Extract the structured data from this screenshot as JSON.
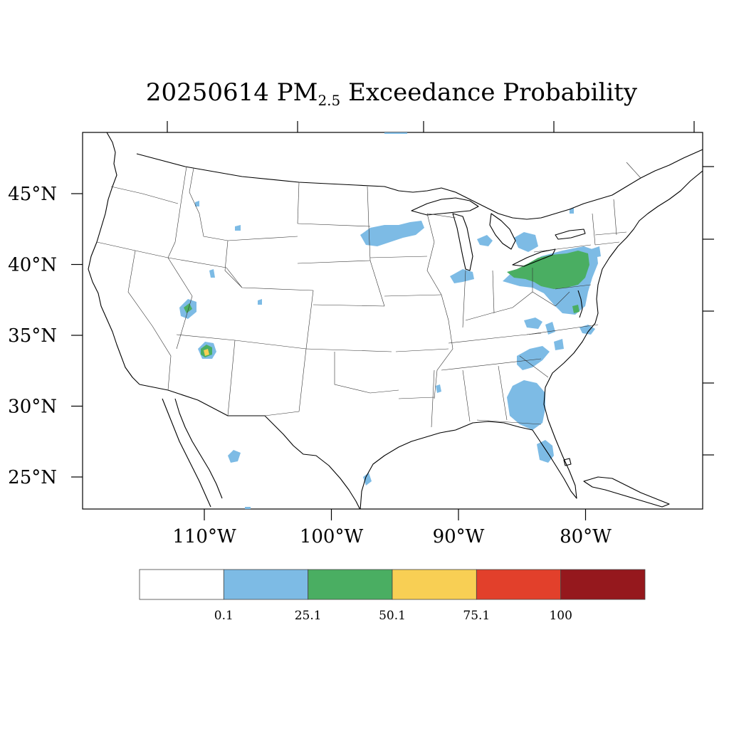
{
  "title": {
    "date": "20250614",
    "pm_main": "PM",
    "pm_sub": "2.5",
    "rest": "Exceedance Probability"
  },
  "map": {
    "lat_labels": [
      {
        "text": "45°N",
        "value": 45
      },
      {
        "text": "40°N",
        "value": 40
      },
      {
        "text": "35°N",
        "value": 35
      },
      {
        "text": "30°N",
        "value": 30
      },
      {
        "text": "25°N",
        "value": 25
      }
    ],
    "lon_labels": [
      {
        "text": "110°W",
        "value": -110
      },
      {
        "text": "100°W",
        "value": -100
      },
      {
        "text": "90°W",
        "value": -90
      },
      {
        "text": "80°W",
        "value": -80
      }
    ],
    "colors": {
      "blue": "#7dbbe5",
      "green": "#4aae62",
      "yellow": "#f8cf54",
      "red": "#e2402b",
      "darkred": "#95181d"
    },
    "regions": [
      {
        "name": "pennsylvania-green-region",
        "level": "green"
      },
      {
        "name": "mid-atlantic-blue-region",
        "level": "blue"
      },
      {
        "name": "georgia-blue-region",
        "level": "blue"
      },
      {
        "name": "carolina-blue-region",
        "level": "blue"
      },
      {
        "name": "florida-blue-region",
        "level": "blue"
      },
      {
        "name": "minnesota-blue-region",
        "level": "blue"
      },
      {
        "name": "ohio-valley-blue-region",
        "level": "blue"
      },
      {
        "name": "utah-region",
        "level": "green"
      },
      {
        "name": "arizona-region",
        "level": "yellow"
      },
      {
        "name": "mexico-blue-region",
        "level": "blue"
      }
    ]
  },
  "colorbar": {
    "bins": [
      {
        "color": "#ffffff"
      },
      {
        "color": "#7dbbe5"
      },
      {
        "color": "#4aae62"
      },
      {
        "color": "#f8cf54"
      },
      {
        "color": "#e2402b"
      },
      {
        "color": "#95181d"
      }
    ],
    "labels": [
      "0.1",
      "25.1",
      "50.1",
      "75.1",
      "100"
    ]
  }
}
